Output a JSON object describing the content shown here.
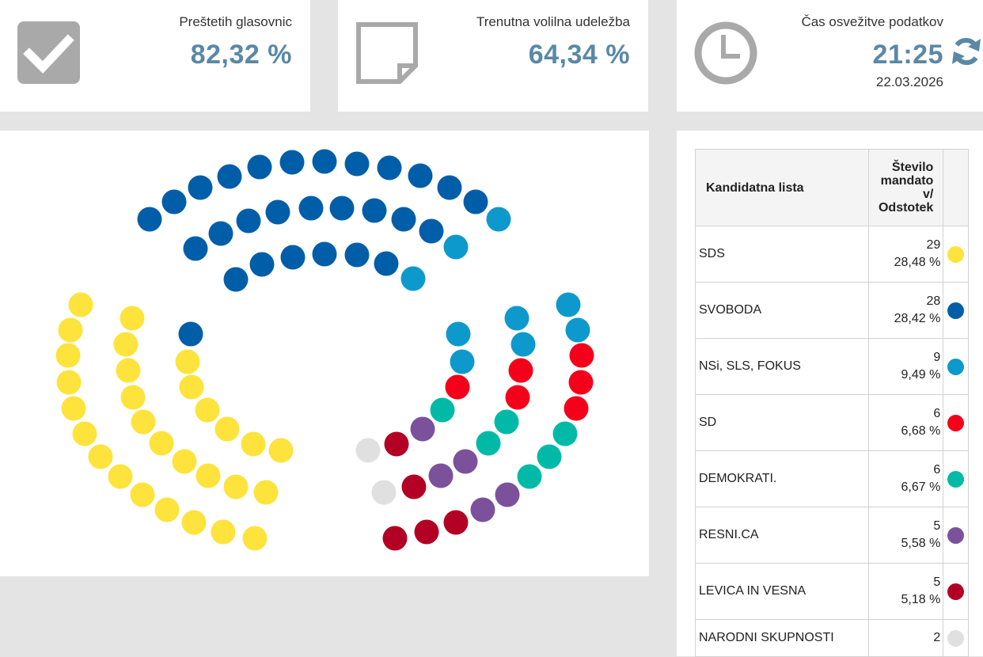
{
  "stats": [
    {
      "label": "Preštetih glasovnic",
      "value": "82,32 %",
      "icon": "checkbox-check-icon"
    },
    {
      "label": "Trenutna volilna udeležba",
      "value": "64,34 %",
      "icon": "note-page-icon"
    },
    {
      "label": "Čas osvežitve podatkov",
      "value": "21:25",
      "date": "22.03.2026",
      "icon": "clock-icon",
      "action_icon": "refresh-icon"
    }
  ],
  "table": {
    "headers": {
      "list": "Kandidatna lista",
      "seats": "Število mandato v/ Odstotek"
    },
    "rows": [
      {
        "name": "SDS",
        "seats": "29",
        "percent": "28,48 %",
        "color": "#FDE33C"
      },
      {
        "name": "SVOBODA",
        "seats": "28",
        "percent": "28,42 %",
        "color": "#005EA8"
      },
      {
        "name": "NSi, SLS, FOKUS",
        "seats": "9",
        "percent": "9,49 %",
        "color": "#0E99CC"
      },
      {
        "name": "SD",
        "seats": "6",
        "percent": "6,68 %",
        "color": "#F4001A"
      },
      {
        "name": "DEMOKRATI.",
        "seats": "6",
        "percent": "6,67 %",
        "color": "#00BAA7"
      },
      {
        "name": "RESNI.CA",
        "seats": "5",
        "percent": "5,58 %",
        "color": "#7C519C"
      },
      {
        "name": "LEVICA IN VESNA",
        "seats": "5",
        "percent": "5,18 %",
        "color": "#B30025"
      },
      {
        "name": "NARODNI SKUPNOSTI",
        "seats": "2",
        "percent": "",
        "color": "#E0E0E0"
      }
    ]
  },
  "colors": {
    "accent": "#5A88A6",
    "icon_gray": "#A9A9A9"
  }
}
